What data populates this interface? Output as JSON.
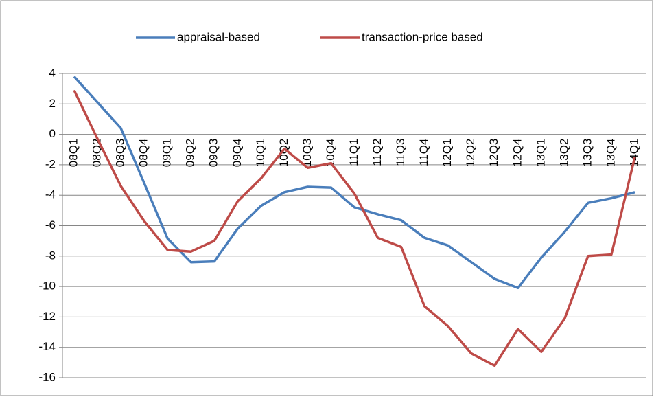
{
  "chart_data": {
    "type": "line",
    "categories": [
      "08Q1",
      "08Q2",
      "08Q3",
      "08Q4",
      "09Q1",
      "09Q2",
      "09Q3",
      "09Q4",
      "10Q1",
      "10Q2",
      "10Q3",
      "10Q4",
      "11Q1",
      "11Q2",
      "11Q3",
      "11Q4",
      "12Q1",
      "12Q2",
      "12Q3",
      "12Q4",
      "13Q1",
      "13Q2",
      "13Q3",
      "13Q4",
      "14Q1"
    ],
    "series": [
      {
        "name": "appraisal-based",
        "color": "#4a7ebb",
        "values": [
          3.8,
          2.1,
          0.4,
          -3.2,
          -6.85,
          -8.4,
          -8.35,
          -6.2,
          -4.7,
          -3.8,
          -3.45,
          -3.5,
          -4.8,
          -5.25,
          -5.65,
          -6.8,
          -7.3,
          -8.4,
          -9.5,
          -10.1,
          -8.1,
          -6.4,
          -4.5,
          -4.2,
          -3.8
        ]
      },
      {
        "name": "transaction-price based",
        "color": "#be4b48",
        "values": [
          2.9,
          -0.3,
          -3.4,
          -5.7,
          -7.6,
          -7.7,
          -7.0,
          -4.4,
          -2.9,
          -0.95,
          -2.2,
          -1.9,
          -3.9,
          -6.8,
          -7.4,
          -11.3,
          -12.6,
          -14.4,
          -15.2,
          -12.8,
          -14.3,
          -12.1,
          -8.0,
          -7.9,
          -1.5
        ]
      }
    ],
    "ylim": [
      -16,
      4
    ],
    "yticks": [
      -16,
      -14,
      -12,
      -10,
      -8,
      -6,
      -4,
      -2,
      0,
      2,
      4
    ],
    "grid": true,
    "legend": "top"
  }
}
